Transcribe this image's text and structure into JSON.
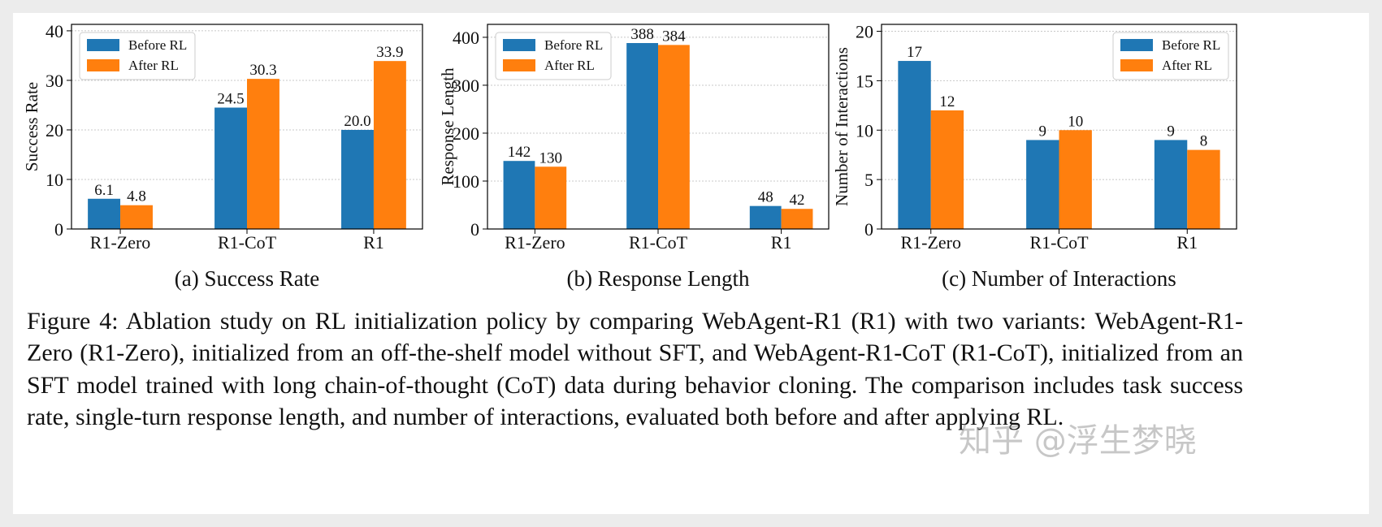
{
  "chart_data": [
    {
      "type": "bar",
      "title": "(a) Success Rate",
      "ylabel": "Success Rate",
      "categories": [
        "R1-Zero",
        "R1-CoT",
        "R1"
      ],
      "series": [
        {
          "name": "Before RL",
          "color": "#1f77b4",
          "values": [
            6.1,
            24.5,
            20.0
          ],
          "value_labels": [
            "6.1",
            "24.5",
            "20.0"
          ]
        },
        {
          "name": "After RL",
          "color": "#ff7f0e",
          "values": [
            4.8,
            30.3,
            33.9
          ]
        }
      ],
      "ylim": [
        0,
        41.3
      ],
      "yticks": [
        0,
        10,
        20,
        30,
        40
      ],
      "grid": true,
      "legend": "upper left"
    },
    {
      "type": "bar",
      "title": "(b) Response Length",
      "ylabel": "Response Length",
      "categories": [
        "R1-Zero",
        "R1-CoT",
        "R1"
      ],
      "series": [
        {
          "name": "Before RL",
          "color": "#1f77b4",
          "values": [
            142,
            388,
            48
          ]
        },
        {
          "name": "After RL",
          "color": "#ff7f0e",
          "values": [
            130,
            384,
            42
          ]
        }
      ],
      "ylim": [
        0,
        427
      ],
      "yticks": [
        0,
        100,
        200,
        300,
        400
      ],
      "grid": true,
      "legend": "upper left"
    },
    {
      "type": "bar",
      "title": "(c) Number of Interactions",
      "ylabel": "Number of Interactions",
      "categories": [
        "R1-Zero",
        "R1-CoT",
        "R1"
      ],
      "series": [
        {
          "name": "Before RL",
          "color": "#1f77b4",
          "values": [
            17,
            9,
            9
          ]
        },
        {
          "name": "After RL",
          "color": "#ff7f0e",
          "values": [
            12,
            10,
            8
          ]
        }
      ],
      "ylim": [
        0,
        20.7
      ],
      "yticks": [
        0,
        5,
        10,
        15,
        20
      ],
      "grid": true,
      "legend": "upper right"
    }
  ],
  "caption": "Figure 4: Ablation study on RL initialization policy by comparing WebAgent-R1 (R1) with two variants: WebAgent-R1-Zero (R1-Zero), initialized from an off-the-shelf model without SFT, and WebAgent-R1-CoT (R1-CoT), initialized from an SFT model trained with long chain-of-thought (CoT) data during behavior cloning. The comparison includes task success rate, single-turn response length, and number of interactions, evaluated both before and after applying RL.",
  "watermark": "知乎 @浮生梦晓"
}
